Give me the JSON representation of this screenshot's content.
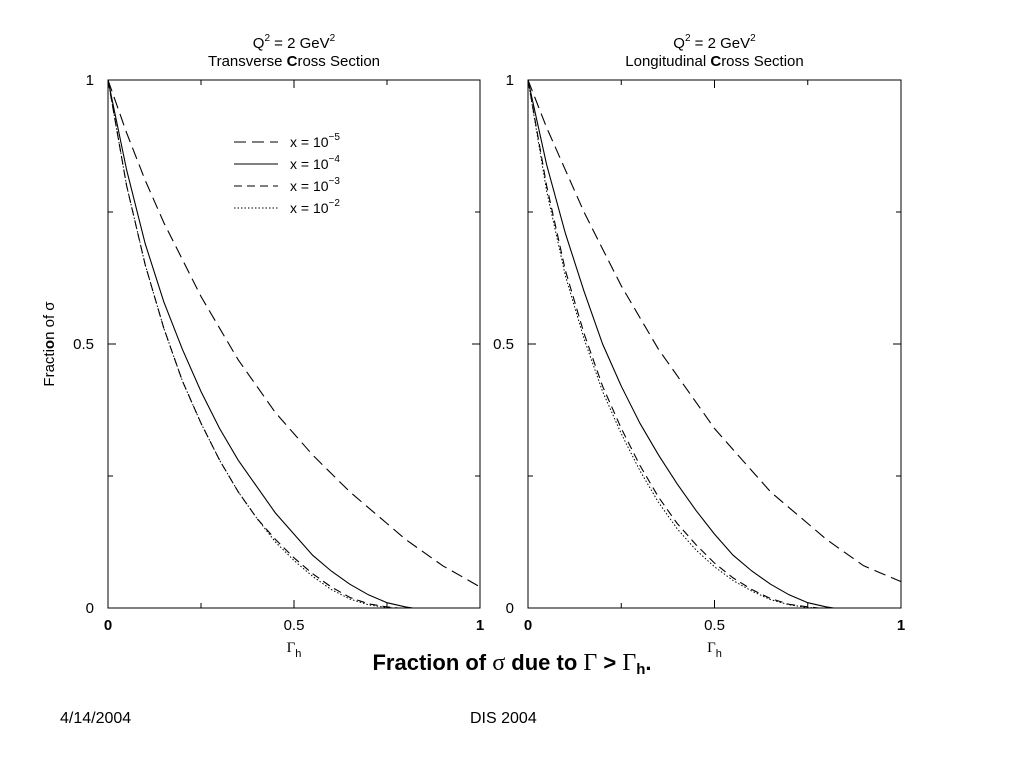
{
  "chart_data": [
    {
      "type": "line",
      "title_line1": "Q",
      "title_sup1": "2",
      "title_mid": " = 2 GeV",
      "title_sup2": "2",
      "subtitle_pre": "Transverse ",
      "subtitle_bold": "C",
      "subtitle_post": "ross Section",
      "xlabel": "Γ",
      "xlabel_sub": "h",
      "ylabel_pre": "Fracti",
      "ylabel_bold": "o",
      "ylabel_post": "n of σ",
      "xlim": [
        0,
        1
      ],
      "ylim": [
        0,
        1
      ],
      "x_ticks": [
        "0",
        "0.5",
        "1"
      ],
      "y_ticks": [
        "0",
        "0.5",
        "1"
      ],
      "legend_position": "top-right",
      "series": [
        {
          "name": "x = 10",
          "exp": "−5",
          "style": "long-dash",
          "x": [
            0,
            0.05,
            0.1,
            0.15,
            0.2,
            0.25,
            0.3,
            0.35,
            0.4,
            0.45,
            0.5,
            0.55,
            0.6,
            0.65,
            0.7,
            0.75,
            0.8,
            0.85,
            0.9,
            0.95,
            1.0
          ],
          "y": [
            1.0,
            0.9,
            0.81,
            0.73,
            0.66,
            0.59,
            0.53,
            0.47,
            0.42,
            0.37,
            0.33,
            0.29,
            0.255,
            0.22,
            0.19,
            0.16,
            0.13,
            0.105,
            0.08,
            0.06,
            0.04
          ]
        },
        {
          "name": "x = 10",
          "exp": "−4",
          "style": "solid",
          "x": [
            0,
            0.05,
            0.1,
            0.15,
            0.2,
            0.25,
            0.3,
            0.35,
            0.4,
            0.45,
            0.5,
            0.55,
            0.6,
            0.65,
            0.7,
            0.75,
            0.8,
            0.82
          ],
          "y": [
            1.0,
            0.83,
            0.69,
            0.58,
            0.49,
            0.41,
            0.34,
            0.28,
            0.23,
            0.18,
            0.14,
            0.1,
            0.07,
            0.045,
            0.025,
            0.01,
            0.002,
            0.0
          ]
        },
        {
          "name": "x = 10",
          "exp": "−3",
          "style": "dash",
          "x": [
            0,
            0.05,
            0.1,
            0.15,
            0.2,
            0.25,
            0.3,
            0.35,
            0.4,
            0.45,
            0.5,
            0.55,
            0.6,
            0.65,
            0.7,
            0.75,
            0.78
          ],
          "y": [
            1.0,
            0.8,
            0.65,
            0.53,
            0.43,
            0.35,
            0.28,
            0.22,
            0.17,
            0.13,
            0.095,
            0.065,
            0.04,
            0.02,
            0.008,
            0.002,
            0.0
          ]
        },
        {
          "name": "x = 10",
          "exp": "−2",
          "style": "dotted",
          "x": [
            0,
            0.05,
            0.1,
            0.15,
            0.2,
            0.25,
            0.3,
            0.35,
            0.4,
            0.45,
            0.5,
            0.55,
            0.6,
            0.65,
            0.7,
            0.75,
            0.77
          ],
          "y": [
            1.0,
            0.8,
            0.65,
            0.53,
            0.43,
            0.35,
            0.28,
            0.22,
            0.17,
            0.125,
            0.09,
            0.06,
            0.035,
            0.017,
            0.006,
            0.001,
            0.0
          ]
        }
      ]
    },
    {
      "type": "line",
      "title_line1": "Q",
      "title_sup1": "2",
      "title_mid": " = 2 GeV",
      "title_sup2": "2",
      "subtitle_pre": "Longitudinal ",
      "subtitle_bold": "C",
      "subtitle_post": "ross Section",
      "xlabel": "Γ",
      "xlabel_sub": "h",
      "xlim": [
        0,
        1
      ],
      "ylim": [
        0,
        1
      ],
      "x_ticks": [
        "0",
        "0.5",
        "1"
      ],
      "y_ticks": [
        "0",
        "0.5",
        "1"
      ],
      "series": [
        {
          "name": "x = 10",
          "exp": "−5",
          "style": "long-dash",
          "x": [
            0,
            0.05,
            0.1,
            0.15,
            0.2,
            0.25,
            0.3,
            0.35,
            0.4,
            0.45,
            0.5,
            0.55,
            0.6,
            0.65,
            0.7,
            0.75,
            0.8,
            0.85,
            0.9,
            0.95,
            1.0
          ],
          "y": [
            1.0,
            0.91,
            0.83,
            0.75,
            0.68,
            0.61,
            0.55,
            0.49,
            0.44,
            0.39,
            0.34,
            0.3,
            0.26,
            0.22,
            0.19,
            0.16,
            0.13,
            0.105,
            0.08,
            0.065,
            0.05
          ]
        },
        {
          "name": "x = 10",
          "exp": "−4",
          "style": "solid",
          "x": [
            0,
            0.05,
            0.1,
            0.15,
            0.2,
            0.25,
            0.3,
            0.35,
            0.4,
            0.45,
            0.5,
            0.55,
            0.6,
            0.65,
            0.7,
            0.75,
            0.8,
            0.82
          ],
          "y": [
            1.0,
            0.84,
            0.71,
            0.6,
            0.5,
            0.42,
            0.35,
            0.29,
            0.235,
            0.185,
            0.14,
            0.1,
            0.07,
            0.045,
            0.025,
            0.01,
            0.002,
            0.0
          ]
        },
        {
          "name": "x = 10",
          "exp": "−3",
          "style": "dash",
          "x": [
            0,
            0.05,
            0.1,
            0.15,
            0.2,
            0.25,
            0.3,
            0.35,
            0.4,
            0.45,
            0.5,
            0.55,
            0.6,
            0.65,
            0.7,
            0.75,
            0.78
          ],
          "y": [
            1.0,
            0.8,
            0.64,
            0.52,
            0.42,
            0.34,
            0.27,
            0.21,
            0.16,
            0.12,
            0.085,
            0.057,
            0.035,
            0.018,
            0.007,
            0.002,
            0.0
          ]
        },
        {
          "name": "x = 10",
          "exp": "−2",
          "style": "dotted",
          "x": [
            0,
            0.05,
            0.1,
            0.15,
            0.2,
            0.25,
            0.3,
            0.35,
            0.4,
            0.45,
            0.5,
            0.55,
            0.6,
            0.65,
            0.7,
            0.75,
            0.77
          ],
          "y": [
            1.0,
            0.79,
            0.63,
            0.51,
            0.41,
            0.33,
            0.26,
            0.2,
            0.15,
            0.11,
            0.078,
            0.052,
            0.032,
            0.016,
            0.006,
            0.001,
            0.0
          ]
        }
      ]
    }
  ],
  "caption": {
    "pre": "Fraction of ",
    "sigma": "σ",
    "mid": " due to ",
    "gamma1": "Γ",
    "gt": " > ",
    "gamma2": "Γ",
    "sub": "h",
    "post": "."
  },
  "footer": {
    "date": "4/14/2004",
    "conference": "DIS 2004"
  }
}
